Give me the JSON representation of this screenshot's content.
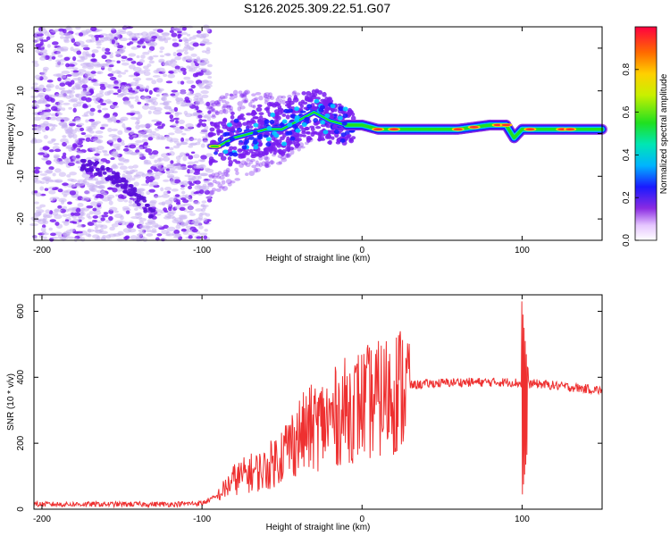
{
  "title": "S126.2025.309.22.51.G07",
  "colors": {
    "snr_line": "#ee3030",
    "axes": "#000000",
    "scatter_primary": "#7a1ff0",
    "scatter_faint": "#c9b2f2"
  },
  "chart_data": [
    {
      "type": "heatmap",
      "xlabel": "Height of straight line (km)",
      "ylabel": "Frequency (Hz)",
      "xlim": [
        -205,
        150
      ],
      "ylim": [
        -25,
        25
      ],
      "xticks": [
        -200,
        -100,
        0,
        100
      ],
      "yticks": [
        -20,
        -10,
        0,
        10,
        20
      ],
      "colorbar": {
        "label": "Normalized spectral amplitude",
        "range": [
          0,
          1
        ],
        "ticks": [
          0.0,
          0.2,
          0.4,
          0.6,
          0.8
        ]
      },
      "main_trace": {
        "x": [
          -95,
          -90,
          -80,
          -70,
          -60,
          -50,
          -40,
          -30,
          -20,
          -10,
          0,
          10,
          20,
          40,
          60,
          80,
          90,
          95,
          100,
          120,
          150
        ],
        "frequency": [
          -3,
          -3,
          -1,
          0,
          1,
          1,
          3,
          5,
          3,
          2,
          2,
          1,
          1,
          1,
          1,
          2,
          2,
          -1,
          1,
          1,
          1
        ]
      },
      "diagonal_trace": {
        "x": [
          -175,
          -160,
          -145,
          -130
        ],
        "frequency": [
          -7,
          -9,
          -13,
          -19
        ]
      }
    },
    {
      "type": "line",
      "xlabel": "Height of straight line (km)",
      "ylabel": "SNR (10 * v/v)",
      "xlim": [
        -205,
        150
      ],
      "ylim": [
        0,
        650
      ],
      "xticks": [
        -200,
        -100,
        0,
        100
      ],
      "yticks": [
        0,
        200,
        400,
        600
      ],
      "series": [
        {
          "name": "SNR",
          "x": [
            -205,
            -180,
            -150,
            -120,
            -100,
            -90,
            -80,
            -70,
            -60,
            -50,
            -40,
            -30,
            -20,
            -10,
            0,
            10,
            20,
            30,
            40,
            60,
            80,
            95,
            100,
            102,
            104,
            110,
            120,
            130,
            150
          ],
          "y": [
            15,
            15,
            15,
            15,
            18,
            40,
            90,
            110,
            120,
            170,
            220,
            250,
            270,
            300,
            320,
            330,
            360,
            375,
            380,
            385,
            385,
            385,
            380,
            620,
            380,
            380,
            375,
            370,
            360
          ]
        }
      ]
    }
  ]
}
